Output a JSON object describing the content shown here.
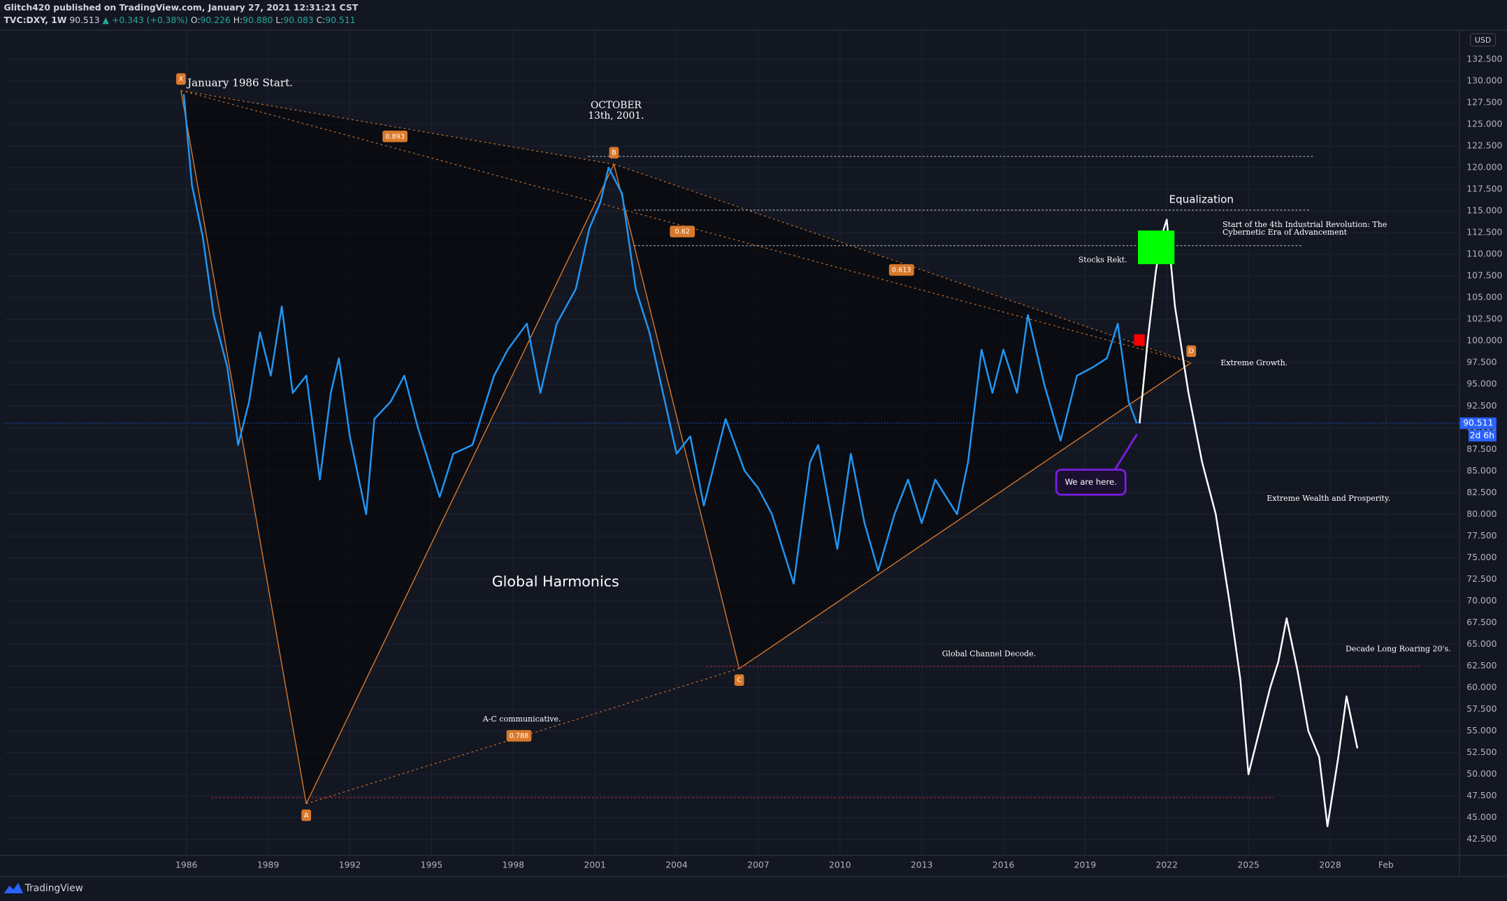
{
  "header": {
    "publisher": "Glitch420 published on TradingView.com, January 27, 2021 12:31:21 CST",
    "symbol": "TVC:DXY, 1W",
    "price": "90.513",
    "change": "▲ +0.343 (+0.38%)",
    "ohlc": [
      "O:",
      "90.226",
      "H:",
      "90.880",
      "L:",
      "90.083",
      "C:",
      "90.511"
    ],
    "currency": "USD",
    "brand": "TradingView"
  },
  "chart_data": {
    "type": "line",
    "grid": true,
    "xlim": [
      1979.33,
      2032.73
    ],
    "xticks": [
      1986,
      1989,
      1992,
      1995,
      1998,
      2001,
      2004,
      2007,
      2010,
      2013,
      2016,
      2019,
      2022,
      2025,
      2028,
      {
        "value": 2030.05,
        "label": "Feb"
      }
    ],
    "ylim": [
      40.7,
      135.8
    ],
    "yticks": [
      {
        "value": 42.5,
        "label": "42.500"
      },
      {
        "value": 45,
        "label": "45.000"
      },
      {
        "value": 47.5,
        "label": "47.500"
      },
      {
        "value": 50,
        "label": "50.000"
      },
      {
        "value": 52.5,
        "label": "52.500"
      },
      {
        "value": 55,
        "label": "55.000"
      },
      {
        "value": 57.5,
        "label": "57.500"
      },
      {
        "value": 60,
        "label": "60.000"
      },
      {
        "value": 62.5,
        "label": "62.500"
      },
      {
        "value": 65,
        "label": "65.000"
      },
      {
        "value": 67.5,
        "label": "67.500"
      },
      {
        "value": 70,
        "label": "70.000"
      },
      {
        "value": 72.5,
        "label": "72.500"
      },
      {
        "value": 75,
        "label": "75.000"
      },
      {
        "value": 77.5,
        "label": "77.500"
      },
      {
        "value": 80,
        "label": "80.000"
      },
      {
        "value": 82.5,
        "label": "82.500"
      },
      {
        "value": 85,
        "label": "85.000"
      },
      {
        "value": 87.5,
        "label": "87.500"
      },
      {
        "value": 90,
        "label": "90.000"
      },
      {
        "value": 92.5,
        "label": "92.500"
      },
      {
        "value": 95,
        "label": "95.000"
      },
      {
        "value": 97.5,
        "label": "97.500"
      },
      {
        "value": 100,
        "label": "100.000"
      },
      {
        "value": 102.5,
        "label": "102.500"
      },
      {
        "value": 105,
        "label": "105.000"
      },
      {
        "value": 107.5,
        "label": "107.500"
      },
      {
        "value": 110,
        "label": "110.000"
      },
      {
        "value": 112.5,
        "label": "112.500"
      },
      {
        "value": 115,
        "label": "115.000"
      },
      {
        "value": 117.5,
        "label": "117.500"
      },
      {
        "value": 120,
        "label": "120.000"
      },
      {
        "value": 122.5,
        "label": "122.500"
      },
      {
        "value": 125,
        "label": "125.000"
      },
      {
        "value": 127.5,
        "label": "127.500"
      },
      {
        "value": 130,
        "label": "130.000"
      },
      {
        "value": 132.5,
        "label": "132.500"
      }
    ],
    "series": [
      {
        "color": "#2196f3",
        "x": [
          1985.9,
          1986.2,
          1986.6,
          1987.0,
          1987.5,
          1987.9,
          1988.3,
          1988.7,
          1989.1,
          1989.5,
          1989.9,
          1990.4,
          1990.9,
          1991.3,
          1991.6,
          1992.0,
          1992.6,
          1992.9,
          1993.5,
          1994.0,
          1994.5,
          1995.3,
          1995.8,
          1996.5,
          1997.3,
          1997.8,
          1998.5,
          1999.0,
          1999.6,
          2000.3,
          2000.8,
          2001.2,
          2001.5,
          2002.0,
          2002.5,
          2003.0,
          2003.5,
          2004.0,
          2004.5,
          2005.0,
          2005.8,
          2006.5,
          2007.0,
          2007.5,
          2008.3,
          2008.9,
          2009.2,
          2009.9,
          2010.4,
          2010.9,
          2011.4,
          2012.0,
          2012.5,
          2013.0,
          2013.5,
          2014.3,
          2014.7,
          2015.2,
          2015.6,
          2016.0,
          2016.5,
          2016.9,
          2017.5,
          2018.1,
          2018.7,
          2019.3,
          2019.8,
          2020.2,
          2020.6,
          2020.9
        ],
        "values": [
          128.5,
          118,
          112,
          103,
          97,
          88,
          93,
          101,
          96,
          104,
          94,
          96,
          84,
          94,
          98,
          89,
          80,
          91,
          93,
          96,
          90,
          82,
          87,
          88,
          96,
          99,
          102,
          94,
          102,
          106,
          113,
          116,
          120,
          117,
          106,
          101,
          94,
          87,
          89,
          81,
          91,
          85,
          83,
          80,
          72,
          86,
          88,
          76,
          87,
          79,
          73.5,
          80,
          84,
          79,
          84,
          80,
          86,
          99,
          94,
          99,
          94,
          103,
          95,
          88.5,
          96,
          97,
          98,
          102,
          93,
          90.5
        ]
      },
      {
        "color": "#ffffff",
        "x": [
          2021.0,
          2021.3,
          2021.6,
          2021.8,
          2022.0,
          2022.3,
          2022.8,
          2023.3,
          2023.8,
          2024.3,
          2024.7,
          2025.0,
          2025.4,
          2025.8,
          2026.1,
          2026.4,
          2026.8,
          2027.2,
          2027.6,
          2027.9,
          2028.3,
          2028.6,
          2029.0
        ],
        "values": [
          90.5,
          100,
          108,
          112,
          114,
          104,
          94,
          86,
          80,
          70,
          61,
          50,
          55,
          60,
          63,
          68,
          62,
          55,
          52,
          44,
          52,
          59,
          53
        ]
      }
    ],
    "pattern": [
      {
        "label": "X",
        "x": 1985.8,
        "y": 128.9
      },
      {
        "label": "A",
        "x": 1990.4,
        "y": 46.6
      },
      {
        "label": "B",
        "x": 2001.7,
        "y": 120.4
      },
      {
        "label": "C",
        "x": 2006.3,
        "y": 62.2
      },
      {
        "label": "D",
        "x": 2022.9,
        "y": 97.5
      }
    ],
    "ratios": [
      0.893,
      0.62,
      0.613,
      0.788
    ],
    "hlines": [
      {
        "value": 121.3,
        "color": "#b2b5be"
      },
      {
        "value": 115.1,
        "color": "#b2b5be"
      },
      {
        "value": 111.0,
        "color": "#b2b5be"
      },
      {
        "value": 62.45,
        "color": "#b22833"
      },
      {
        "value": 47.3,
        "color": "#b22833"
      }
    ],
    "last_price": 90.511,
    "countdown": "2d 6h",
    "annotations": [
      [
        "January 1986 Start."
      ],
      [
        "OCTOBER",
        "13th, 2001."
      ],
      [
        "Equalization"
      ],
      [
        "Start of the 4th Industrial Revolution: The",
        "Cybernetic Era of Advancement"
      ],
      [
        "Stocks Rekt."
      ],
      [
        "Extreme Growth."
      ],
      [
        "We are here."
      ],
      [
        "Extreme Wealth and Prosperity."
      ],
      [
        "Global Harmonics"
      ],
      [
        "Global Channel Decode."
      ],
      [
        "Decade Long Roaring 20's."
      ],
      [
        "A-C communicative."
      ]
    ]
  }
}
